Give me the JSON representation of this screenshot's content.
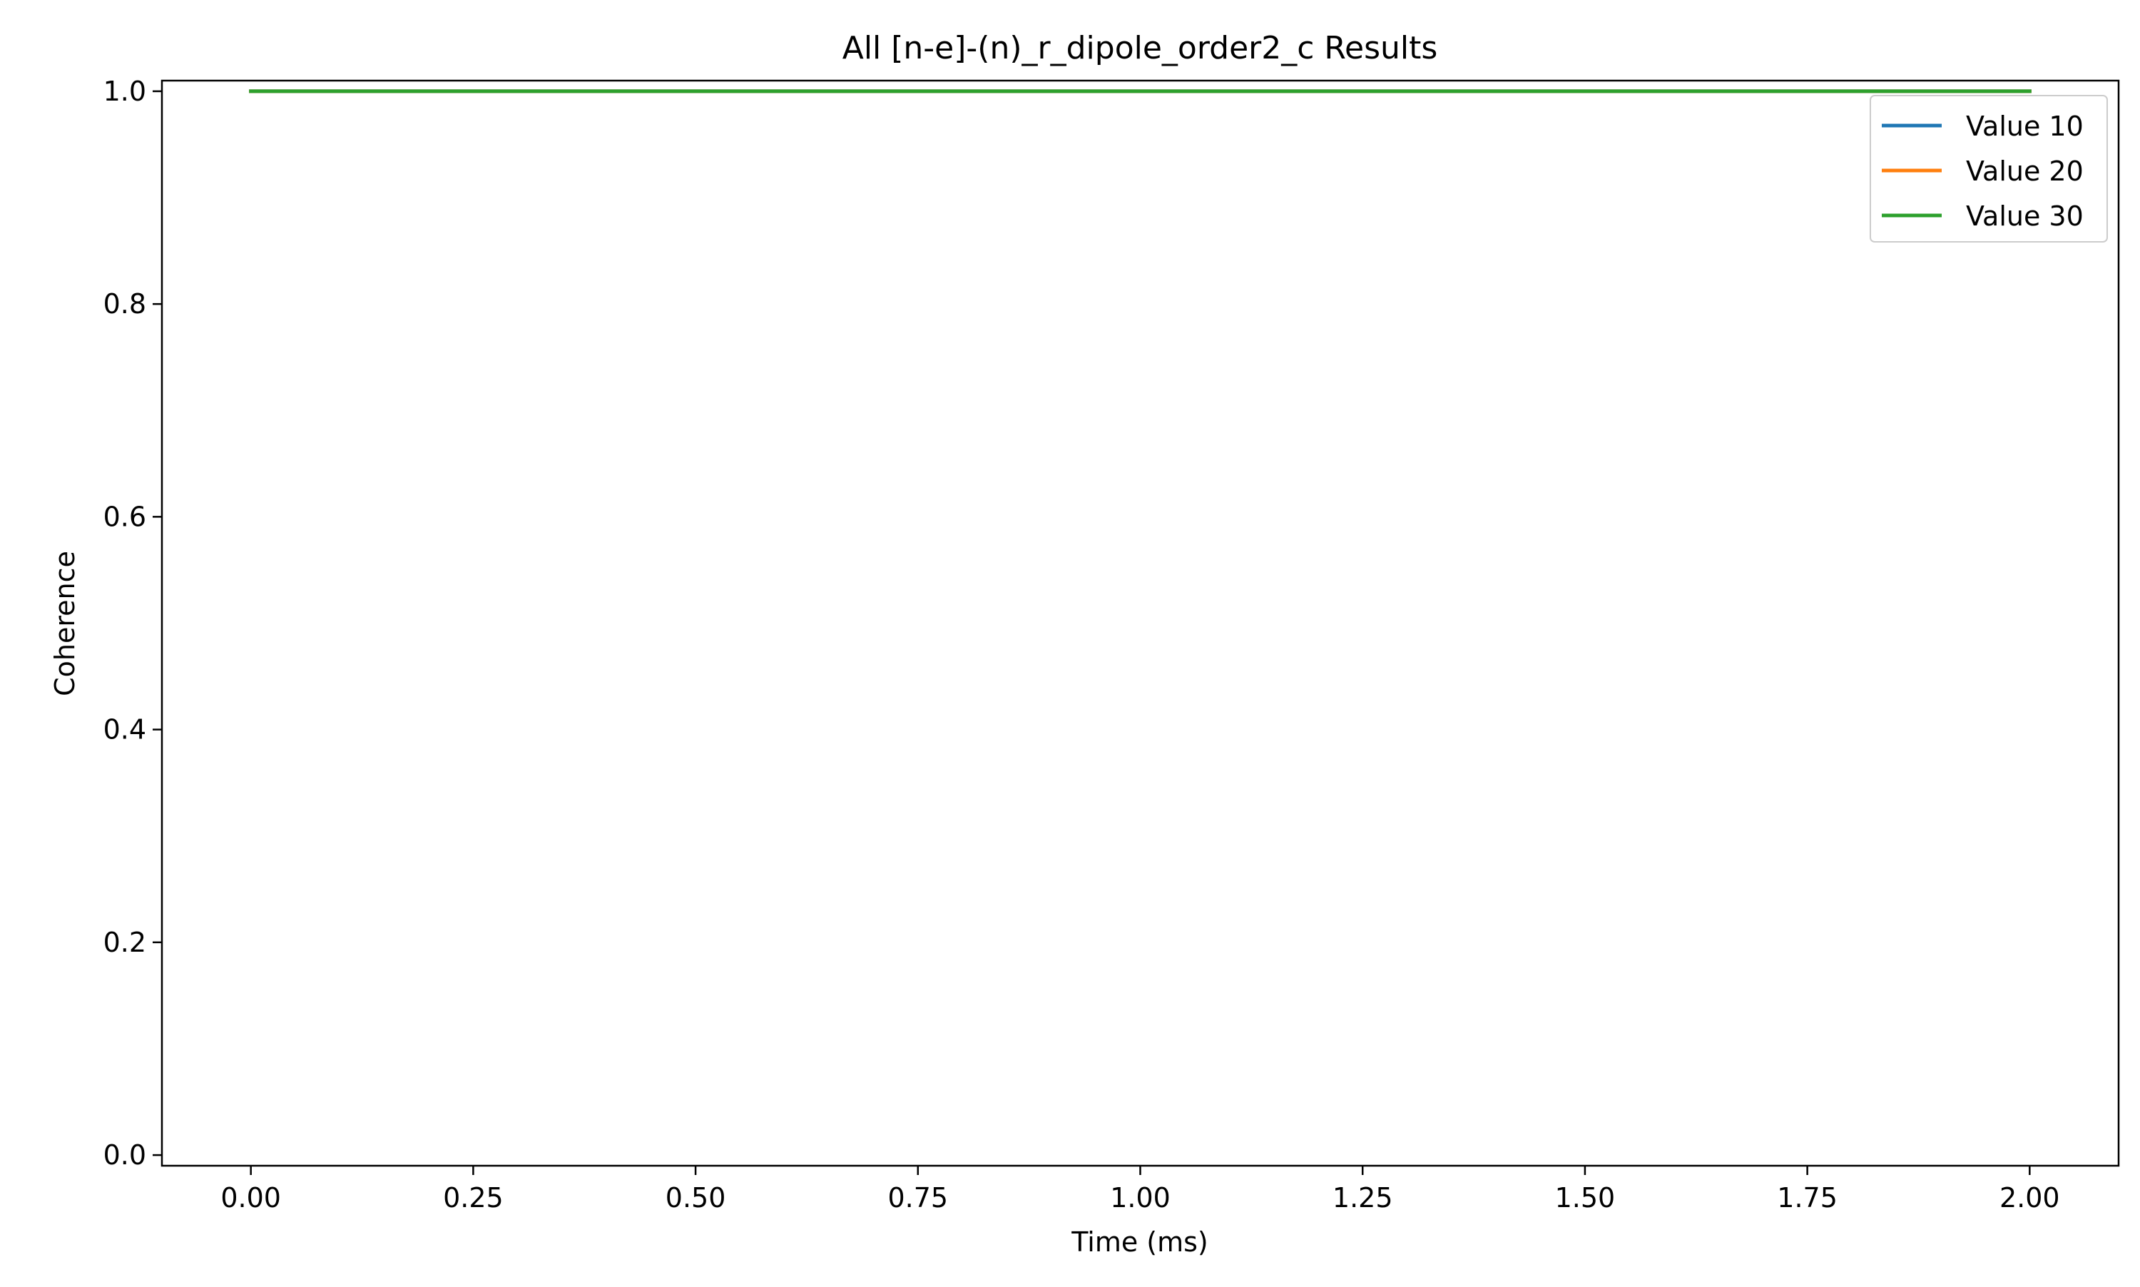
{
  "chart_data": {
    "type": "line",
    "title": "All [n-e]-(n)_r_dipole_order2_c Results",
    "xlabel": "Time (ms)",
    "ylabel": "Coherence",
    "xlim": [
      -0.1,
      2.1
    ],
    "ylim": [
      -0.01,
      1.01
    ],
    "xticks": [
      0.0,
      0.25,
      0.5,
      0.75,
      1.0,
      1.25,
      1.5,
      1.75,
      2.0
    ],
    "xtick_labels": [
      "0.00",
      "0.25",
      "0.50",
      "0.75",
      "1.00",
      "1.25",
      "1.50",
      "1.75",
      "2.00"
    ],
    "yticks": [
      0.0,
      0.2,
      0.4,
      0.6,
      0.8,
      1.0
    ],
    "ytick_labels": [
      "0.0",
      "0.2",
      "0.4",
      "0.6",
      "0.8",
      "1.0"
    ],
    "grid": false,
    "legend_position": "top-right",
    "series": [
      {
        "name": "Value 10",
        "color": "#1f77b4",
        "x": [
          0.0,
          2.0
        ],
        "y": [
          1.0,
          1.0
        ]
      },
      {
        "name": "Value 20",
        "color": "#ff7f0e",
        "x": [
          0.0,
          2.0
        ],
        "y": [
          1.0,
          1.0
        ]
      },
      {
        "name": "Value 30",
        "color": "#2ca02c",
        "x": [
          0.0,
          2.0
        ],
        "y": [
          1.0,
          1.0
        ]
      }
    ]
  }
}
